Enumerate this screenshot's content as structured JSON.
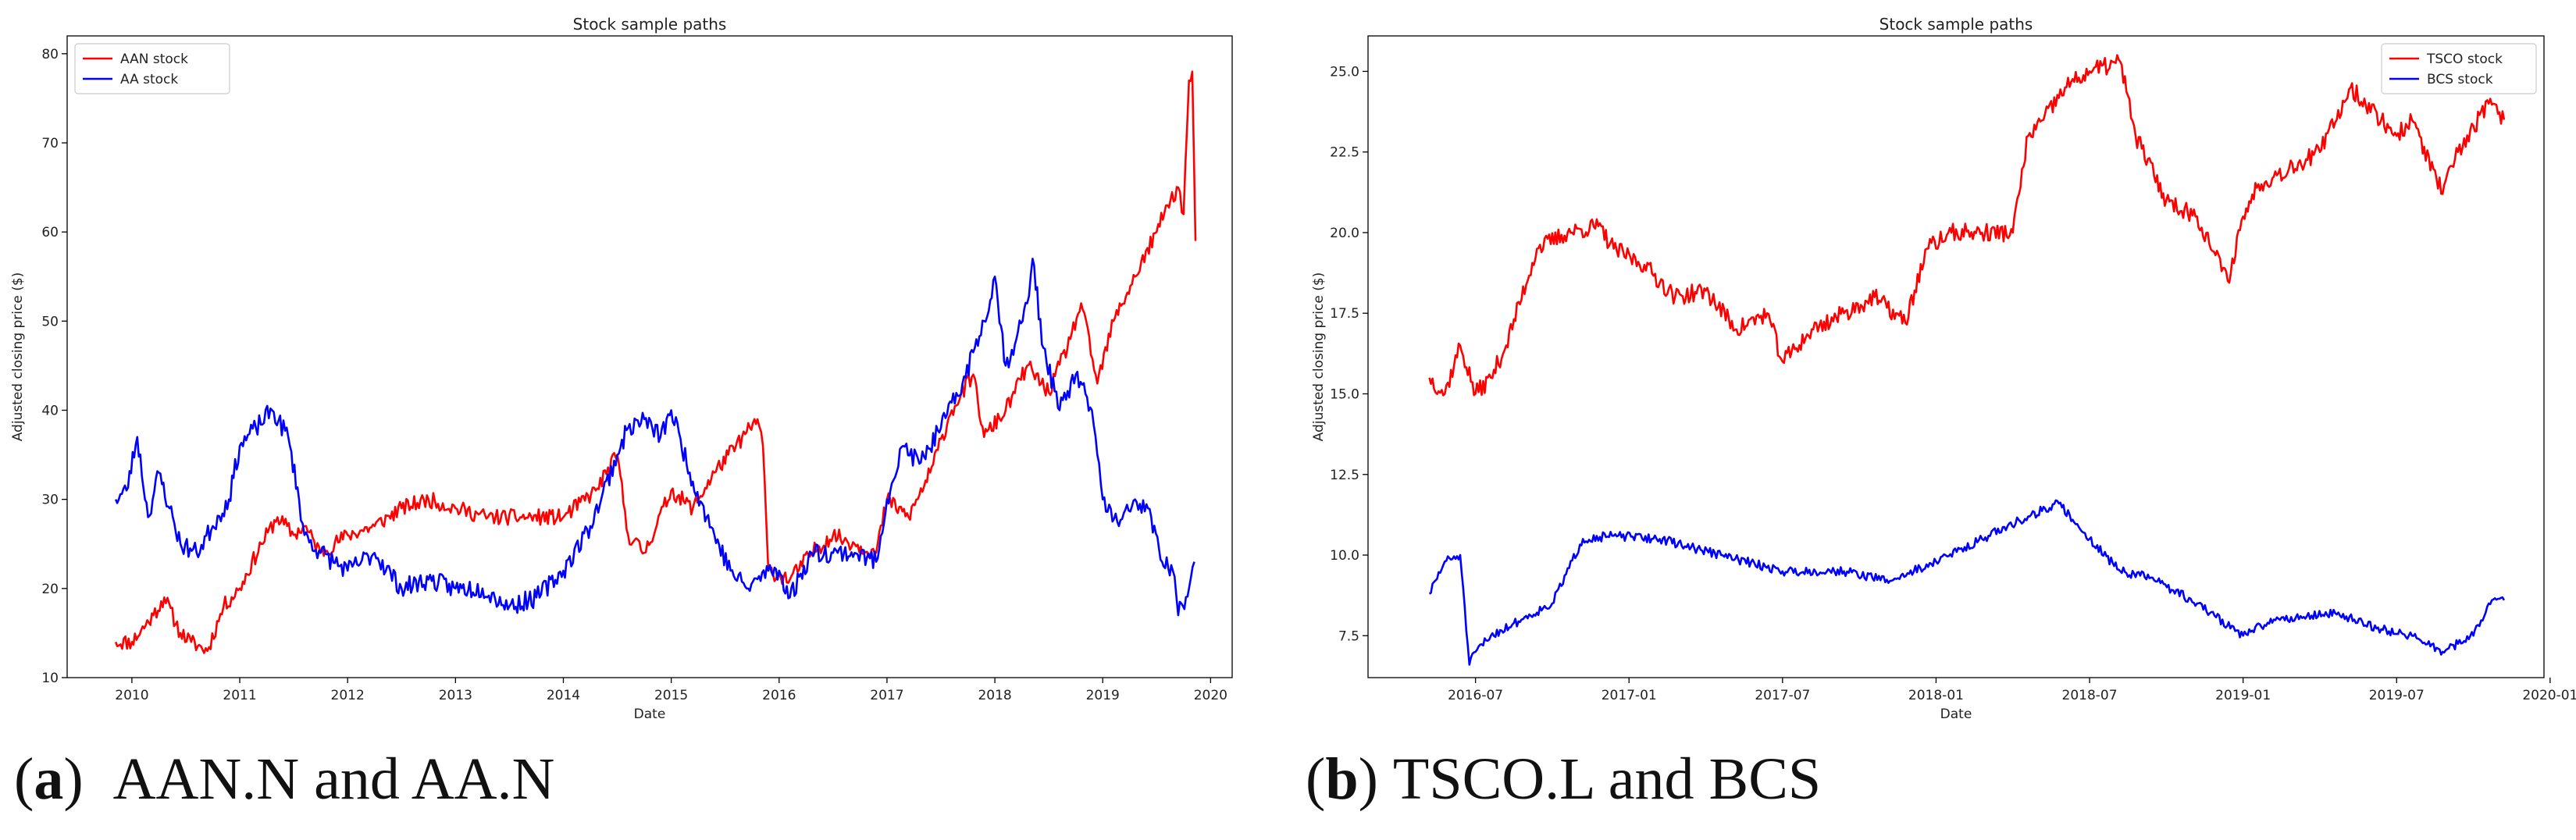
{
  "chart_data": [
    {
      "type": "line",
      "title": "Stock sample paths",
      "xlabel": "Date",
      "ylabel": "Adjusted closing price ($)",
      "xlim": [
        2009.4,
        2020.2
      ],
      "ylim": [
        10,
        82
      ],
      "xticks": [
        {
          "value": 2010,
          "label": "2010"
        },
        {
          "value": 2011,
          "label": "2011"
        },
        {
          "value": 2012,
          "label": "2012"
        },
        {
          "value": 2013,
          "label": "2013"
        },
        {
          "value": 2014,
          "label": "2014"
        },
        {
          "value": 2015,
          "label": "2015"
        },
        {
          "value": 2016,
          "label": "2016"
        },
        {
          "value": 2017,
          "label": "2017"
        },
        {
          "value": 2018,
          "label": "2018"
        },
        {
          "value": 2019,
          "label": "2019"
        },
        {
          "value": 2020,
          "label": "2020"
        }
      ],
      "yticks": [
        {
          "value": 10,
          "label": "10"
        },
        {
          "value": 20,
          "label": "20"
        },
        {
          "value": 30,
          "label": "30"
        },
        {
          "value": 40,
          "label": "40"
        },
        {
          "value": 50,
          "label": "50"
        },
        {
          "value": 60,
          "label": "60"
        },
        {
          "value": 70,
          "label": "70"
        },
        {
          "value": 80,
          "label": "80"
        }
      ],
      "legend_position": "top-left",
      "grid": false,
      "series": [
        {
          "name": "AAN stock",
          "color": "#ff0000",
          "noise": 0.9,
          "seed": 11,
          "x": [
            2009.85,
            2010.0,
            2010.2,
            2010.3,
            2010.45,
            2010.55,
            2010.7,
            2010.85,
            2011.0,
            2011.2,
            2011.35,
            2011.5,
            2011.6,
            2011.75,
            2012.0,
            2012.25,
            2012.5,
            2012.75,
            2013.0,
            2013.3,
            2013.6,
            2014.0,
            2014.3,
            2014.5,
            2014.6,
            2014.75,
            2015.0,
            2015.2,
            2015.4,
            2015.6,
            2015.8,
            2015.85,
            2015.9,
            2016.1,
            2016.3,
            2016.5,
            2016.7,
            2016.9,
            2017.0,
            2017.2,
            2017.4,
            2017.6,
            2017.8,
            2017.9,
            2018.1,
            2018.3,
            2018.5,
            2018.7,
            2018.8,
            2018.95,
            2019.1,
            2019.3,
            2019.5,
            2019.6,
            2019.7,
            2019.75,
            2019.8,
            2019.83,
            2019.86
          ],
          "y": [
            14,
            14,
            17,
            19,
            15,
            14,
            13,
            18,
            20,
            25,
            28,
            26,
            27,
            24,
            26,
            27,
            29,
            30,
            29,
            28,
            28,
            28,
            31,
            35,
            26,
            24,
            31,
            29,
            33,
            36,
            39,
            36,
            22,
            21,
            24,
            26,
            25,
            24,
            30,
            28,
            33,
            40,
            44,
            37,
            40,
            45,
            42,
            48,
            52,
            43,
            50,
            55,
            60,
            63,
            65,
            62,
            77,
            78,
            59
          ]
        },
        {
          "name": "AA stock",
          "color": "#0000ff",
          "noise": 1.1,
          "seed": 23,
          "x": [
            2009.85,
            2009.95,
            2010.05,
            2010.15,
            2010.25,
            2010.35,
            2010.45,
            2010.6,
            2010.75,
            2010.9,
            2011.0,
            2011.15,
            2011.3,
            2011.45,
            2011.55,
            2011.6,
            2011.75,
            2012.0,
            2012.25,
            2012.5,
            2012.75,
            2013.0,
            2013.25,
            2013.5,
            2013.75,
            2014.0,
            2014.25,
            2014.5,
            2014.6,
            2014.75,
            2014.9,
            2015.0,
            2015.2,
            2015.4,
            2015.55,
            2015.7,
            2015.9,
            2016.0,
            2016.1,
            2016.3,
            2016.5,
            2016.7,
            2016.9,
            2017.0,
            2017.15,
            2017.3,
            2017.5,
            2017.7,
            2017.9,
            2018.0,
            2018.1,
            2018.2,
            2018.3,
            2018.35,
            2018.45,
            2018.6,
            2018.75,
            2018.9,
            2018.95,
            2019.0,
            2019.15,
            2019.3,
            2019.45,
            2019.55,
            2019.65,
            2019.7,
            2019.8,
            2019.85
          ],
          "y": [
            30,
            31,
            37,
            28,
            33,
            29,
            25,
            24,
            27,
            30,
            36,
            38,
            40,
            37,
            30,
            26,
            24,
            22,
            24,
            20,
            21,
            20,
            20,
            18,
            19,
            22,
            27,
            35,
            38,
            39,
            37,
            40,
            32,
            26,
            22,
            20,
            22,
            22,
            19,
            24,
            24,
            24,
            23,
            30,
            36,
            34,
            38,
            43,
            50,
            55,
            45,
            48,
            52,
            57,
            47,
            40,
            44,
            40,
            35,
            30,
            27,
            30,
            28,
            23,
            22,
            17,
            20,
            23
          ]
        }
      ]
    },
    {
      "type": "line",
      "title": "Stock sample paths",
      "xlabel": "Date",
      "ylabel": "Adjusted closing price ($)",
      "xlim": [
        2016.15,
        2019.98
      ],
      "ylim": [
        6.2,
        26.1
      ],
      "xticks": [
        {
          "value": 2016.5,
          "label": "2016-07"
        },
        {
          "value": 2017.0,
          "label": "2017-01"
        },
        {
          "value": 2017.5,
          "label": "2017-07"
        },
        {
          "value": 2018.0,
          "label": "2018-01"
        },
        {
          "value": 2018.5,
          "label": "2018-07"
        },
        {
          "value": 2019.0,
          "label": "2019-01"
        },
        {
          "value": 2019.5,
          "label": "2019-07"
        },
        {
          "value": 2020.0,
          "label": "2020-01"
        }
      ],
      "yticks": [
        {
          "value": 7.5,
          "label": "7.5"
        },
        {
          "value": 10.0,
          "label": "10.0"
        },
        {
          "value": 12.5,
          "label": "12.5"
        },
        {
          "value": 15.0,
          "label": "15.0"
        },
        {
          "value": 17.5,
          "label": "17.5"
        },
        {
          "value": 20.0,
          "label": "20.0"
        },
        {
          "value": 22.5,
          "label": "22.5"
        },
        {
          "value": 25.0,
          "label": "25.0"
        }
      ],
      "legend_position": "top-right",
      "grid": false,
      "series": [
        {
          "name": "TSCO stock",
          "color": "#ff0000",
          "noise": 0.28,
          "seed": 37,
          "x": [
            2016.35,
            2016.4,
            2016.45,
            2016.5,
            2016.55,
            2016.6,
            2016.7,
            2016.8,
            2016.9,
            2016.95,
            2017.05,
            2017.15,
            2017.25,
            2017.35,
            2017.45,
            2017.5,
            2017.6,
            2017.7,
            2017.8,
            2017.9,
            2017.97,
            2018.05,
            2018.15,
            2018.25,
            2018.3,
            2018.35,
            2018.42,
            2018.5,
            2018.6,
            2018.65,
            2018.75,
            2018.85,
            2018.95,
            2019.0,
            2019.05,
            2019.15,
            2019.25,
            2019.35,
            2019.45,
            2019.5,
            2019.55,
            2019.65,
            2019.7,
            2019.8,
            2019.85
          ],
          "y": [
            15.5,
            15.0,
            16.5,
            15.0,
            15.5,
            16.5,
            19.5,
            20.0,
            20.2,
            19.5,
            19.0,
            18.0,
            18.2,
            17.0,
            17.5,
            16.0,
            17.0,
            17.5,
            18.0,
            17.2,
            19.5,
            20.0,
            20.0,
            20.0,
            23.0,
            23.5,
            24.5,
            25.0,
            25.3,
            23.0,
            21.0,
            20.5,
            18.5,
            20.5,
            21.5,
            22.0,
            22.5,
            24.5,
            23.5,
            23.0,
            23.5,
            21.2,
            22.5,
            24.0,
            23.5
          ]
        },
        {
          "name": "BCS stock",
          "color": "#0000ff",
          "noise": 0.14,
          "seed": 51,
          "x": [
            2016.35,
            2016.4,
            2016.45,
            2016.48,
            2016.5,
            2016.55,
            2016.65,
            2016.75,
            2016.85,
            2016.95,
            2017.1,
            2017.3,
            2017.5,
            2017.7,
            2017.85,
            2018.0,
            2018.15,
            2018.3,
            2018.4,
            2018.5,
            2018.6,
            2018.7,
            2018.85,
            2019.0,
            2019.1,
            2019.3,
            2019.45,
            2019.55,
            2019.65,
            2019.75,
            2019.8,
            2019.85
          ],
          "y": [
            8.8,
            9.8,
            10.0,
            6.6,
            7.0,
            7.5,
            8.0,
            8.5,
            10.5,
            10.6,
            10.5,
            10.0,
            9.5,
            9.5,
            9.2,
            9.8,
            10.5,
            11.2,
            11.6,
            10.5,
            9.5,
            9.3,
            8.5,
            7.5,
            8.0,
            8.2,
            7.7,
            7.5,
            7.0,
            7.5,
            8.5,
            8.6
          ]
        }
      ]
    }
  ],
  "captions": [
    {
      "letter": "a",
      "text": "AAN.N and AA.N"
    },
    {
      "letter": "b",
      "text": "TSCO.L and BCS"
    }
  ]
}
